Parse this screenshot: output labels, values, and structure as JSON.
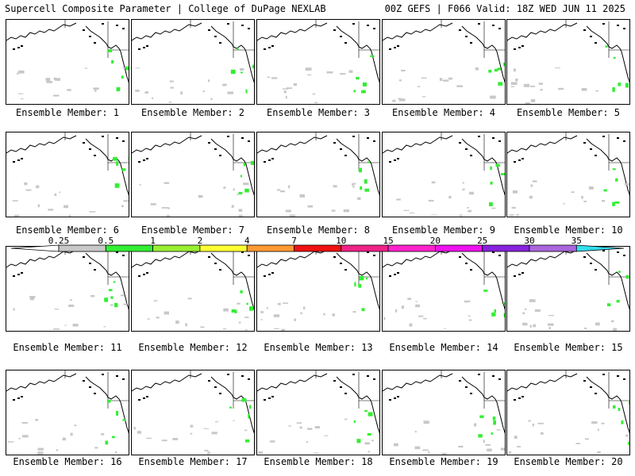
{
  "header": {
    "left": "Supercell Composite Parameter | College of DuPage NEXLAB",
    "right": "00Z GEFS | F066 Valid: 18Z WED JUN 11 2025"
  },
  "panels": [
    {
      "label": "Ensemble Member: 1"
    },
    {
      "label": "Ensemble Member: 2"
    },
    {
      "label": "Ensemble Member: 3"
    },
    {
      "label": "Ensemble Member: 4"
    },
    {
      "label": "Ensemble Member: 5"
    },
    {
      "label": "Ensemble Member: 6"
    },
    {
      "label": "Ensemble Member: 7"
    },
    {
      "label": "Ensemble Member: 8"
    },
    {
      "label": "Ensemble Member: 9"
    },
    {
      "label": "Ensemble Member: 10"
    },
    {
      "label": "Ensemble Member: 11"
    },
    {
      "label": "Ensemble Member: 12"
    },
    {
      "label": "Ensemble Member: 13"
    },
    {
      "label": "Ensemble Member: 14"
    },
    {
      "label": "Ensemble Member: 15"
    },
    {
      "label": "Ensemble Member: 16"
    },
    {
      "label": "Ensemble Member: 17"
    },
    {
      "label": "Ensemble Member: 18"
    },
    {
      "label": "Ensemble Member: 19"
    },
    {
      "label": "Ensemble Member: 20"
    }
  ],
  "colorbar": {
    "ticks": [
      "0.25",
      "0.5",
      "1",
      "2",
      "4",
      "7",
      "10",
      "15",
      "20",
      "25",
      "30",
      "35"
    ],
    "colors": [
      "#ffffff",
      "#c8c8c8",
      "#33ee33",
      "#99ee33",
      "#ffff33",
      "#ff9933",
      "#ee1111",
      "#ee2288",
      "#ff22cc",
      "#ee11ee",
      "#8822dd",
      "#aa66dd",
      "#33ddee"
    ]
  },
  "colors": {
    "land_outline": "#000000",
    "low_value": "#c8c8c8",
    "mid_value": "#33ee33"
  }
}
